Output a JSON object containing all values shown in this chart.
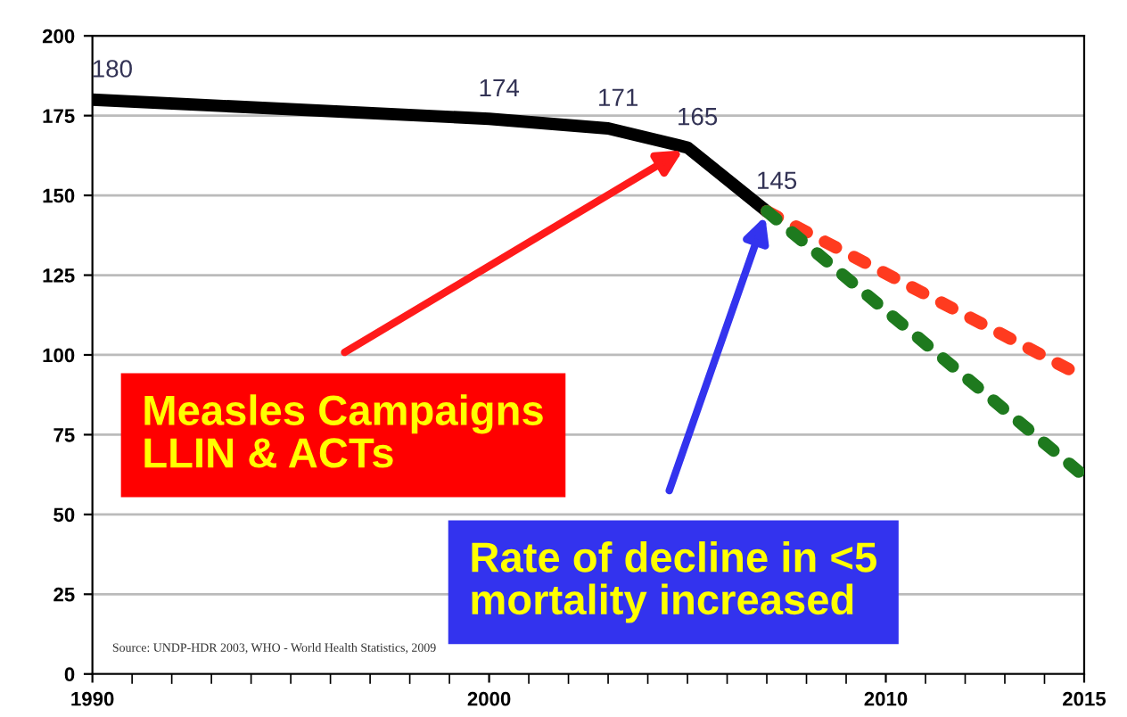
{
  "chart_data": {
    "type": "line",
    "series": [
      {
        "color": "#000000",
        "x": [
          1990,
          2000,
          2003,
          2005,
          2007
        ],
        "values": [
          180,
          174,
          171,
          165,
          145
        ],
        "value_labels": [
          "180",
          "174",
          "171",
          "165",
          "145"
        ],
        "line_style": "solid"
      },
      {
        "color": "#ff3b1f",
        "x": [
          2007,
          2015
        ],
        "values": [
          145,
          93
        ],
        "line_style": "dotted"
      },
      {
        "color": "#1e7a1e",
        "x": [
          2007,
          2015
        ],
        "values": [
          145,
          62
        ],
        "line_style": "dotted"
      }
    ],
    "xlim": [
      1990,
      2015
    ],
    "xticks": [
      1990,
      2000,
      2010,
      2015
    ],
    "ylim": [
      0,
      200
    ],
    "yticks": [
      0,
      25,
      50,
      75,
      100,
      125,
      150,
      175,
      200
    ],
    "grid": "y",
    "marker": "none",
    "annotations": [
      {
        "text": "Measles Campaigns\nLLIN & ACTs",
        "x": 2005,
        "y": 165
      },
      {
        "text": "Rate of decline in <5\nmortality increased",
        "x": 2007,
        "y": 145
      },
      "Source: UNDP-HDR 2003, WHO - World Health Statistics, 2009"
    ]
  }
}
